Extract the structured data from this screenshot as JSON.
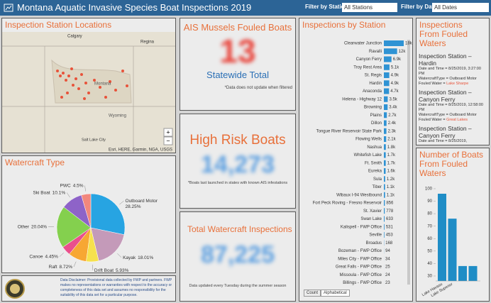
{
  "header": {
    "title": "Montana Aquatic Invasive Species Boat Inspections 2019",
    "filters": [
      {
        "label": "Filter by Station",
        "value": "All Stations"
      },
      {
        "label": "Filter by Date",
        "value": "All Dates"
      }
    ]
  },
  "map": {
    "title": "Inspection Station Locations",
    "places": [
      "Calgary",
      "Regina",
      "Montana",
      "Wyoming",
      "Salt Lake City"
    ],
    "attribution": "Esri, HERE, Garmin, NGA, USGS"
  },
  "watercraft": {
    "type": "pie",
    "title": "Watercraft Type",
    "categories": [
      "Outboard Motor",
      "Kayak",
      "Drift Boat",
      "Raft",
      "Canoe",
      "Other",
      "Ski Boat",
      "PWC"
    ],
    "values": [
      28.25,
      18.01,
      5.93,
      8.72,
      4.45,
      20.04,
      10.1,
      4.5
    ],
    "value_labels": [
      "28.25%",
      "18.01%",
      "5.93%",
      "8.72%",
      "4.45%",
      "20.04%",
      "10.1%",
      "4.5%"
    ],
    "colors": [
      "#27a4e2",
      "#c49ab9",
      "#f6e14d",
      "#f7a733",
      "#ea4f8c",
      "#84d04e",
      "#8e63c8",
      "#f2877d"
    ]
  },
  "disclaimer": "Data Disclaimer: Provisional data collected by FWP and partners. FWP makes no representations or warranties with respect to the accuracy or completeness of this data set and assumes no responsibility for the suitability of this data set for a particular purpose.",
  "mussels": {
    "title": "AIS Mussels Fouled Boats",
    "value": 13,
    "caption": "Statewide Total",
    "note": "*Data does not update when filtered"
  },
  "high_risk": {
    "title": "High Risk Boats",
    "value": 14273,
    "value_label": "14,273",
    "note": "*Boats last launched in states with known AIS infestations"
  },
  "total": {
    "title": "Total Watercraft Inspections",
    "value": 87225,
    "value_label": "87,225",
    "note": "Data updated every Tuesday during the summer season"
  },
  "stations": {
    "type": "bar",
    "title": "Inspections by Station",
    "color": "#2f93d4",
    "categories": [
      "Clearwater Junction",
      "Ravalli",
      "Canyon Ferry",
      "Troy Rest Area",
      "St. Regis",
      "Hardin",
      "Anaconda",
      "Helena - Highway 12",
      "Browning",
      "Plains",
      "Dillon",
      "Tongue River Reservoir State Park",
      "Flowing Wells",
      "Nashua",
      "Whitefish Lake",
      "Ft. Smith",
      "Eureka",
      "Sula",
      "Tiber",
      "Wibaux I-94 Westbound",
      "Fort Peck Roving - Fresno Reservoir",
      "St. Xavier",
      "Swan Lake",
      "Kalispell - FWP Office",
      "Seville",
      "Broadus",
      "Bozeman - FWP Office",
      "Miles City - FWP Office",
      "Great Falls - FWP Office",
      "Missoula - FWP Office",
      "Billings - FWP Office"
    ],
    "values": [
      18000,
      12000,
      6900,
      5100,
      4900,
      4900,
      4700,
      3500,
      3400,
      2700,
      2400,
      2300,
      2100,
      1800,
      1700,
      1700,
      1600,
      1200,
      1100,
      1100,
      856,
      778,
      633,
      531,
      453,
      168,
      94,
      34,
      25,
      24,
      23
    ],
    "value_labels": [
      "18k",
      "12k",
      "6.9k",
      "5.1k",
      "4.9k",
      "4.9k",
      "4.7k",
      "3.5k",
      "3.4k",
      "2.7k",
      "2.4k",
      "2.3k",
      "2.1k",
      "1.8k",
      "1.7k",
      "1.7k",
      "1.6k",
      "1.2k",
      "1.1k",
      "1.1k",
      "856",
      "778",
      "633",
      "531",
      "453",
      "168",
      "94",
      "34",
      "25",
      "24",
      "23"
    ],
    "tabs": [
      "Count",
      "Alphabetical"
    ]
  },
  "fouled_list": {
    "title": "Inspections From Fouled Waters",
    "items": [
      {
        "station": "Inspection Station – Hardin",
        "date": "Date and Time = 8/25/2019, 3:27:00 PM",
        "watercraft": "WatercraftType = Outboard Motor",
        "water_label": "Fouled Water =",
        "water": "Lake Sharpe"
      },
      {
        "station": "Inspection Station – Canyon Ferry",
        "date": "Date and Time = 8/25/2019, 12:58:00 PM",
        "watercraft": "WatercraftType = Outboard Motor",
        "water_label": "Fouled Water =",
        "water": "Great Lakes"
      },
      {
        "station": "Inspection Station – Canyon Ferry",
        "date": "Date and Time = 8/25/2019,"
      }
    ]
  },
  "fouled_chart": {
    "type": "bar",
    "title": "Number of  Boats From Fouled Waters",
    "color": "#1f8dc6",
    "categories": [
      "Lake Havasu",
      "Lake Superior",
      null,
      null
    ],
    "values": [
      96,
      76,
      38,
      38
    ],
    "ylim": [
      26,
      110
    ],
    "yticks": [
      30,
      40,
      50,
      60,
      70,
      80,
      90,
      100
    ]
  }
}
